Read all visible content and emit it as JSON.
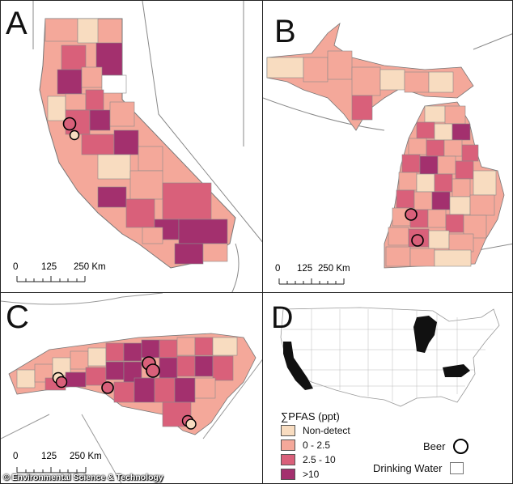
{
  "colors": {
    "non_detect": "#f8dcc0",
    "low": "#f4a89a",
    "mid": "#d9607a",
    "high": "#a3306e",
    "outline": "#7a7a7a",
    "highlight_state": "#111111"
  },
  "panels": [
    {
      "letter": "A",
      "scale": {
        "ticks": [
          "0",
          "125",
          "250 Km"
        ]
      }
    },
    {
      "letter": "B",
      "scale": {
        "ticks": [
          "0",
          "125",
          "250 Km"
        ]
      }
    },
    {
      "letter": "C",
      "scale": {
        "ticks": [
          "0",
          "125",
          "250 Km"
        ]
      }
    },
    {
      "letter": "D"
    }
  ],
  "legend": {
    "title": "∑PFAS (ppt)",
    "items": [
      {
        "label": "Non-detect",
        "color": "#f8dcc0"
      },
      {
        "label": "0 - 2.5",
        "color": "#f4a89a"
      },
      {
        "label": "2.5 - 10",
        "color": "#d9607a"
      },
      {
        "label": ">10",
        "color": "#a3306e"
      }
    ],
    "beer_label": "Beer",
    "water_label": "Drinking Water"
  },
  "credit": "© Environmental Science & Technology"
}
